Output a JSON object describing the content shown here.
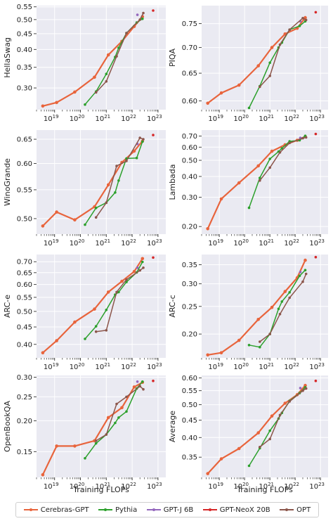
{
  "chart_data": [
    {
      "type": "line",
      "ylabel": "HellaSwag",
      "xlabel": "",
      "log_y": true,
      "ylim": [
        0.255,
        0.555
      ],
      "yticks": [
        0.3,
        0.35,
        0.4,
        0.45,
        0.5,
        0.55
      ],
      "ytick_labels": [
        "0.30",
        "0.35",
        "0.40",
        "0.45",
        "0.50",
        "0.55"
      ],
      "series": [
        {
          "name": "Cerebras-GPT",
          "x": [
            3.5e+18,
            1.2e+19,
            6e+19,
            3.5e+20,
            1.2e+21,
            4e+21,
            1.2e+22,
            2.5e+22
          ],
          "y": [
            0.262,
            0.269,
            0.291,
            0.325,
            0.384,
            0.425,
            0.475,
            0.511
          ]
        },
        {
          "name": "Pythia",
          "x": [
            1.5e+20,
            4e+20,
            1e+21,
            2.2e+21,
            3e+21,
            6e+21,
            1.5e+22,
            2.5e+22
          ],
          "y": [
            0.265,
            0.292,
            0.333,
            0.378,
            0.405,
            0.452,
            0.489,
            0.503
          ]
        },
        {
          "name": "GPT-J 6B",
          "x": [
            1.6e+22
          ],
          "y": [
            0.518
          ]
        },
        {
          "name": "GPT-NeoX 20B",
          "x": [
            6.5e+22
          ],
          "y": [
            0.535
          ]
        },
        {
          "name": "OPT",
          "x": [
            4e+20,
            1e+21,
            2.5e+21,
            6e+21,
            2e+22,
            2.7e+22
          ],
          "y": [
            0.29,
            0.315,
            0.38,
            0.452,
            0.5,
            0.525
          ]
        }
      ]
    },
    {
      "type": "line",
      "ylabel": "PIQA",
      "xlabel": "",
      "log_y": true,
      "ylim": [
        0.585,
        0.79
      ],
      "yticks": [
        0.6,
        0.65,
        0.7,
        0.75
      ],
      "ytick_labels": [
        "0.60",
        "0.65",
        "0.70",
        "0.75"
      ],
      "series": [
        {
          "name": "Cerebras-GPT",
          "x": [
            3.5e+18,
            1.2e+19,
            6e+19,
            3.5e+20,
            1.2e+21,
            4e+21,
            1.2e+22,
            2.5e+22
          ],
          "y": [
            0.596,
            0.614,
            0.628,
            0.664,
            0.7,
            0.728,
            0.74,
            0.763
          ]
        },
        {
          "name": "Pythia",
          "x": [
            1.5e+20,
            4e+20,
            1e+21,
            2.2e+21,
            3e+21,
            6e+21,
            1.5e+22,
            2.5e+22
          ],
          "y": [
            0.588,
            0.626,
            0.67,
            0.7,
            0.71,
            0.737,
            0.745,
            0.755
          ]
        },
        {
          "name": "GPT-J 6B",
          "x": [
            1.6e+22
          ],
          "y": [
            0.755
          ]
        },
        {
          "name": "GPT-NeoX 20B",
          "x": [
            6.5e+22
          ],
          "y": [
            0.775
          ]
        },
        {
          "name": "OPT",
          "x": [
            4e+20,
            1e+21,
            2.5e+21,
            6e+21,
            2e+22,
            2.7e+22
          ],
          "y": [
            0.625,
            0.645,
            0.706,
            0.737,
            0.762,
            0.758
          ]
        }
      ]
    },
    {
      "type": "line",
      "ylabel": "WinoGrande",
      "xlabel": "",
      "log_y": true,
      "ylim": [
        0.475,
        0.67
      ],
      "yticks": [
        0.5,
        0.55,
        0.6,
        0.65
      ],
      "ytick_labels": [
        "0.50",
        "0.55",
        "0.60",
        "0.65"
      ],
      "series": [
        {
          "name": "Cerebras-GPT",
          "x": [
            3.5e+18,
            1.2e+19,
            6e+19,
            3.5e+20,
            1.2e+21,
            4e+21,
            1.2e+22,
            2.5e+22
          ],
          "y": [
            0.488,
            0.511,
            0.498,
            0.52,
            0.559,
            0.602,
            0.625,
            0.646
          ]
        },
        {
          "name": "Pythia",
          "x": [
            1.5e+20,
            4e+20,
            1e+21,
            2.2e+21,
            3e+21,
            6e+21,
            1.5e+22,
            2.5e+22
          ],
          "y": [
            0.49,
            0.518,
            0.527,
            0.545,
            0.567,
            0.61,
            0.611,
            0.645
          ]
        },
        {
          "name": "GPT-J 6B",
          "x": [
            1.6e+22
          ],
          "y": [
            0.64
          ]
        },
        {
          "name": "GPT-NeoX 20B",
          "x": [
            6.5e+22
          ],
          "y": [
            0.659
          ]
        },
        {
          "name": "OPT",
          "x": [
            4e+20,
            1e+21,
            2.5e+21,
            6e+21,
            2e+22,
            2.7e+22
          ],
          "y": [
            0.502,
            0.527,
            0.595,
            0.605,
            0.653,
            0.65
          ]
        }
      ]
    },
    {
      "type": "line",
      "ylabel": "Lambada",
      "xlabel": "",
      "log_y": true,
      "ylim": [
        0.18,
        0.76
      ],
      "yticks": [
        0.2,
        0.3,
        0.4,
        0.5,
        0.6,
        0.7
      ],
      "ytick_labels": [
        "0.20",
        "0.30",
        "0.40",
        "0.50",
        "0.60",
        "0.70"
      ],
      "series": [
        {
          "name": "Cerebras-GPT",
          "x": [
            3.5e+18,
            1.2e+19,
            6e+19,
            3.5e+20,
            1.2e+21,
            4e+21,
            1.2e+22,
            2.5e+22
          ],
          "y": [
            0.194,
            0.293,
            0.366,
            0.463,
            0.567,
            0.62,
            0.66,
            0.695
          ]
        },
        {
          "name": "Pythia",
          "x": [
            1.5e+20,
            4e+20,
            1e+21,
            2.2e+21,
            3e+21,
            6e+21,
            1.5e+22,
            2.5e+22
          ],
          "y": [
            0.259,
            0.392,
            0.51,
            0.564,
            0.59,
            0.65,
            0.66,
            0.702
          ]
        },
        {
          "name": "GPT-J 6B",
          "x": [
            1.6e+22
          ],
          "y": [
            0.683
          ]
        },
        {
          "name": "GPT-NeoX 20B",
          "x": [
            6.5e+22
          ],
          "y": [
            0.72
          ]
        },
        {
          "name": "OPT",
          "x": [
            4e+20,
            1e+21,
            2.5e+21,
            6e+21,
            2e+22,
            2.7e+22
          ],
          "y": [
            0.378,
            0.452,
            0.558,
            0.636,
            0.679,
            0.687
          ]
        }
      ]
    },
    {
      "type": "line",
      "ylabel": "ARC-e",
      "xlabel": "",
      "log_y": true,
      "ylim": [
        0.365,
        0.735
      ],
      "yticks": [
        0.4,
        0.45,
        0.5,
        0.55,
        0.6,
        0.65,
        0.7
      ],
      "ytick_labels": [
        "0.40",
        "0.45",
        "0.50",
        "0.55",
        "0.60",
        "0.65",
        "0.70"
      ],
      "series": [
        {
          "name": "Cerebras-GPT",
          "x": [
            3.5e+18,
            1.2e+19,
            6e+19,
            3.5e+20,
            1.2e+21,
            4e+21,
            1.2e+22,
            2.5e+22
          ],
          "y": [
            0.378,
            0.41,
            0.465,
            0.508,
            0.57,
            0.613,
            0.655,
            0.715
          ]
        },
        {
          "name": "Pythia",
          "x": [
            1.5e+20,
            4e+20,
            1e+21,
            2.2e+21,
            3e+21,
            6e+21,
            1.5e+22,
            2.5e+22
          ],
          "y": [
            0.415,
            0.452,
            0.505,
            0.56,
            0.57,
            0.61,
            0.651,
            0.699
          ]
        },
        {
          "name": "GPT-J 6B",
          "x": [
            1.6e+22
          ],
          "y": [
            0.672
          ]
        },
        {
          "name": "GPT-NeoX 20B",
          "x": [
            6.5e+22
          ],
          "y": [
            0.72
          ]
        },
        {
          "name": "OPT",
          "x": [
            4e+20,
            1e+21,
            2.5e+21,
            6e+21,
            2e+22,
            2.7e+22
          ],
          "y": [
            0.436,
            0.44,
            0.57,
            0.62,
            0.66,
            0.672
          ]
        }
      ]
    },
    {
      "type": "line",
      "ylabel": "ARC-c",
      "xlabel": "",
      "log_y": true,
      "ylim": [
        0.165,
        0.38
      ],
      "yticks": [
        0.2,
        0.25,
        0.3,
        0.35
      ],
      "ytick_labels": [
        "0.20",
        "0.25",
        "0.30",
        "0.35"
      ],
      "series": [
        {
          "name": "Cerebras-GPT",
          "x": [
            3.5e+18,
            1.2e+19,
            6e+19,
            3.5e+20,
            1.2e+21,
            4e+21,
            1.2e+22,
            2.5e+22
          ],
          "y": [
            0.169,
            0.172,
            0.19,
            0.225,
            0.248,
            0.282,
            0.315,
            0.363
          ]
        },
        {
          "name": "Pythia",
          "x": [
            1.5e+20,
            4e+20,
            1e+21,
            2.2e+21,
            3e+21,
            6e+21,
            1.5e+22,
            2.5e+22
          ],
          "y": [
            0.183,
            0.18,
            0.2,
            0.245,
            0.26,
            0.28,
            0.32,
            0.335
          ]
        },
        {
          "name": "GPT-J 6B",
          "x": [
            1.6e+22
          ],
          "y": [
            0.33
          ]
        },
        {
          "name": "GPT-NeoX 20B",
          "x": [
            6.5e+22
          ],
          "y": [
            0.372
          ]
        },
        {
          "name": "OPT",
          "x": [
            4e+20,
            1e+21,
            2.5e+21,
            6e+21,
            2e+22,
            2.7e+22
          ],
          "y": [
            0.188,
            0.2,
            0.235,
            0.268,
            0.305,
            0.325
          ]
        }
      ]
    },
    {
      "type": "line",
      "ylabel": "OpenBookQA",
      "xlabel": "Training FLOPs",
      "log_y": true,
      "ylim": [
        0.118,
        0.305
      ],
      "yticks": [
        0.15,
        0.2,
        0.25,
        0.3
      ],
      "ytick_labels": [
        "0.15",
        "0.20",
        "0.25",
        "0.30"
      ],
      "series": [
        {
          "name": "Cerebras-GPT",
          "x": [
            3.5e+18,
            1.2e+19,
            6e+19,
            3.5e+20,
            1.2e+21,
            4e+21,
            1.2e+22,
            2.5e+22
          ],
          "y": [
            0.121,
            0.158,
            0.158,
            0.166,
            0.206,
            0.226,
            0.274,
            0.286
          ]
        },
        {
          "name": "Pythia",
          "x": [
            1.5e+20,
            4e+20,
            1e+21,
            2.2e+21,
            3e+21,
            6e+21,
            1.5e+22,
            2.5e+22
          ],
          "y": [
            0.141,
            0.162,
            0.176,
            0.196,
            0.206,
            0.218,
            0.27,
            0.288
          ]
        },
        {
          "name": "GPT-J 6B",
          "x": [
            1.6e+22
          ],
          "y": [
            0.288
          ]
        },
        {
          "name": "GPT-NeoX 20B",
          "x": [
            6.5e+22
          ],
          "y": [
            0.29
          ]
        },
        {
          "name": "OPT",
          "x": [
            4e+20,
            1e+21,
            2.5e+21,
            6e+21,
            2e+22,
            2.7e+22
          ],
          "y": [
            0.166,
            0.176,
            0.234,
            0.25,
            0.276,
            0.268
          ]
        }
      ]
    },
    {
      "type": "line",
      "ylabel": "Average",
      "xlabel": "Training FLOPs",
      "log_y": true,
      "ylim": [
        0.305,
        0.61
      ],
      "yticks": [
        0.35,
        0.4,
        0.45,
        0.5,
        0.55,
        0.6
      ],
      "ytick_labels": [
        "0.35",
        "0.40",
        "0.45",
        "0.50",
        "0.55",
        "0.60"
      ],
      "series": [
        {
          "name": "Cerebras-GPT",
          "x": [
            3.5e+18,
            1.2e+19,
            6e+19,
            3.5e+20,
            1.2e+21,
            4e+21,
            1.2e+22,
            2.5e+22
          ],
          "y": [
            0.313,
            0.346,
            0.371,
            0.413,
            0.463,
            0.505,
            0.535,
            0.57
          ]
        },
        {
          "name": "Pythia",
          "x": [
            1.5e+20,
            4e+20,
            1e+21,
            2.2e+21,
            3e+21,
            6e+21,
            1.5e+22,
            2.5e+22
          ],
          "y": [
            0.33,
            0.372,
            0.419,
            0.455,
            0.473,
            0.513,
            0.541,
            0.563
          ]
        },
        {
          "name": "GPT-J 6B",
          "x": [
            1.6e+22
          ],
          "y": [
            0.56
          ]
        },
        {
          "name": "GPT-NeoX 20B",
          "x": [
            6.5e+22
          ],
          "y": [
            0.588
          ]
        },
        {
          "name": "OPT",
          "x": [
            4e+20,
            1e+21,
            2.5e+21,
            6e+21,
            2e+22,
            2.7e+22
          ],
          "y": [
            0.375,
            0.396,
            0.466,
            0.511,
            0.55,
            0.558
          ]
        }
      ]
    }
  ],
  "x_axis": {
    "log": true,
    "xlim": [
      2e+18,
      2e+23
    ],
    "ticks": [
      1e+19,
      1e+20,
      1e+21,
      1e+22,
      1e+23
    ],
    "tick_labels": [
      "10^19",
      "10^20",
      "10^21",
      "10^22",
      "10^23"
    ]
  },
  "legend": {
    "placement": "bottom",
    "items": [
      {
        "label": "Cerebras-GPT",
        "color": "#e8643c"
      },
      {
        "label": "Pythia",
        "color": "#2ca02c"
      },
      {
        "label": "GPT-J 6B",
        "color": "#9467bd"
      },
      {
        "label": "GPT-NeoX 20B",
        "color": "#d62728"
      },
      {
        "label": "OPT",
        "color": "#8c564b"
      }
    ]
  },
  "colors": {
    "Cerebras-GPT": "#e8643c",
    "Pythia": "#2ca02c",
    "GPT-J 6B": "#9467bd",
    "GPT-NeoX 20B": "#d62728",
    "OPT": "#8c564b",
    "panel_bg": "#eaeaf2",
    "grid": "#ffffff"
  }
}
